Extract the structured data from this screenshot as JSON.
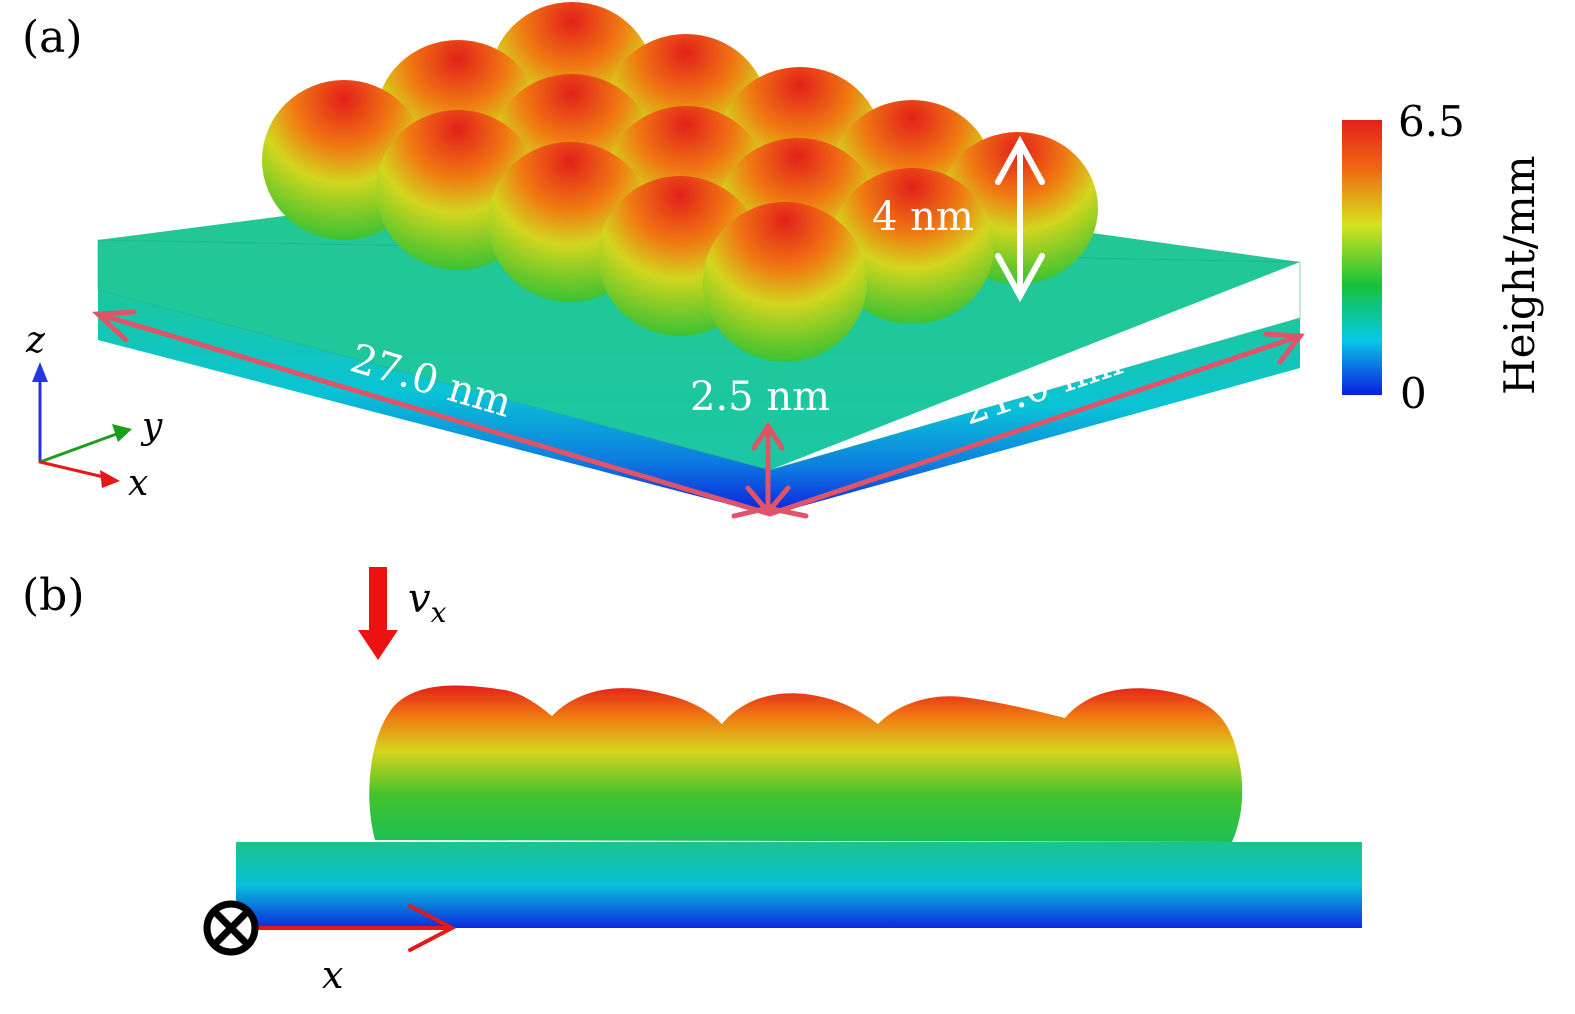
{
  "panels": {
    "a": {
      "label": "(a)",
      "dimensions": {
        "length_x": "27.0 nm",
        "length_y": "21.0 nm",
        "substrate_thickness": "2.5 nm",
        "dome_height": "4 nm"
      },
      "axes": {
        "z": "z",
        "y": "y",
        "x": "x"
      },
      "colorbar": {
        "max_label": "6.5",
        "min_label": "0",
        "title": "Height/mm",
        "colors": [
          "#0b1de0",
          "#08c8e6",
          "#16c23a",
          "#d6e21e",
          "#f06a12",
          "#e3201a"
        ]
      }
    },
    "b": {
      "label": "(b)",
      "velocity": {
        "symbol": "v",
        "subscript": "x"
      },
      "axis_x": "x"
    }
  },
  "arrow_colors": {
    "dimension": "#e0546a",
    "velocity": "#ee1111",
    "axis_x": "#e21a1a",
    "axis_y": "#18a019",
    "axis_z": "#2636e0"
  }
}
